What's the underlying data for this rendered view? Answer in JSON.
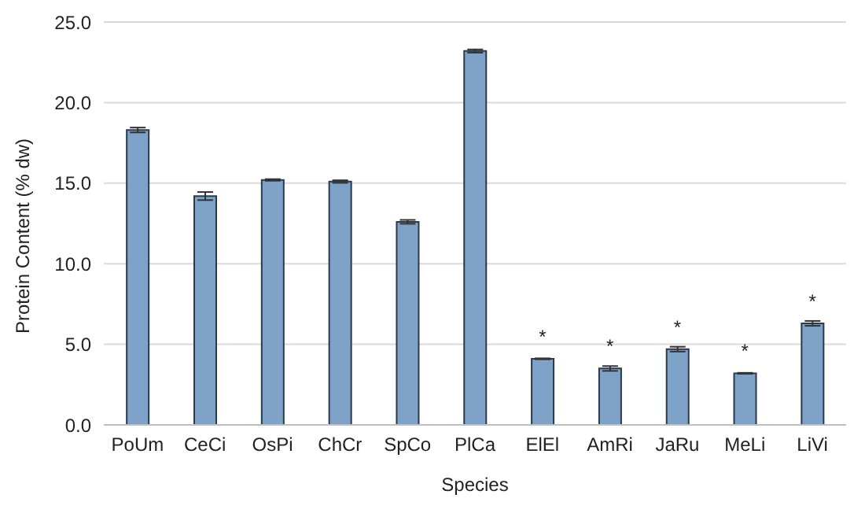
{
  "chart_data": {
    "type": "bar",
    "xlabel": "Species",
    "ylabel": "Protein Content (% dw)",
    "categories": [
      "PoUm",
      "CeCi",
      "OsPi",
      "ChCr",
      "SpCo",
      "PlCa",
      "ElEl",
      "AmRi",
      "JaRu",
      "MeLi",
      "LiVi"
    ],
    "values": [
      18.3,
      14.2,
      15.2,
      15.1,
      12.6,
      23.2,
      4.1,
      3.5,
      4.7,
      3.2,
      6.3
    ],
    "errors": [
      0.15,
      0.25,
      0.05,
      0.08,
      0.12,
      0.1,
      0.03,
      0.15,
      0.15,
      0.03,
      0.15
    ],
    "color": "#7fa3c8",
    "ylim": [
      0,
      25
    ],
    "yticks": [
      {
        "value": 0,
        "label": "0.0"
      },
      {
        "value": 5,
        "label": "5.0"
      },
      {
        "value": 10,
        "label": "10.0"
      },
      {
        "value": 15,
        "label": "15.0"
      },
      {
        "value": 20,
        "label": "20.0"
      },
      {
        "value": 25,
        "label": "25.0"
      }
    ],
    "grid": "y",
    "annotations": [
      {
        "text": "*",
        "x": "ElEl",
        "y": 4.1
      },
      {
        "text": "*",
        "x": "AmRi",
        "y": 3.5
      },
      {
        "text": "*",
        "x": "JaRu",
        "y": 4.7
      },
      {
        "text": "*",
        "x": "MeLi",
        "y": 3.2
      },
      {
        "text": "*",
        "x": "LiVi",
        "y": 6.3
      }
    ]
  }
}
